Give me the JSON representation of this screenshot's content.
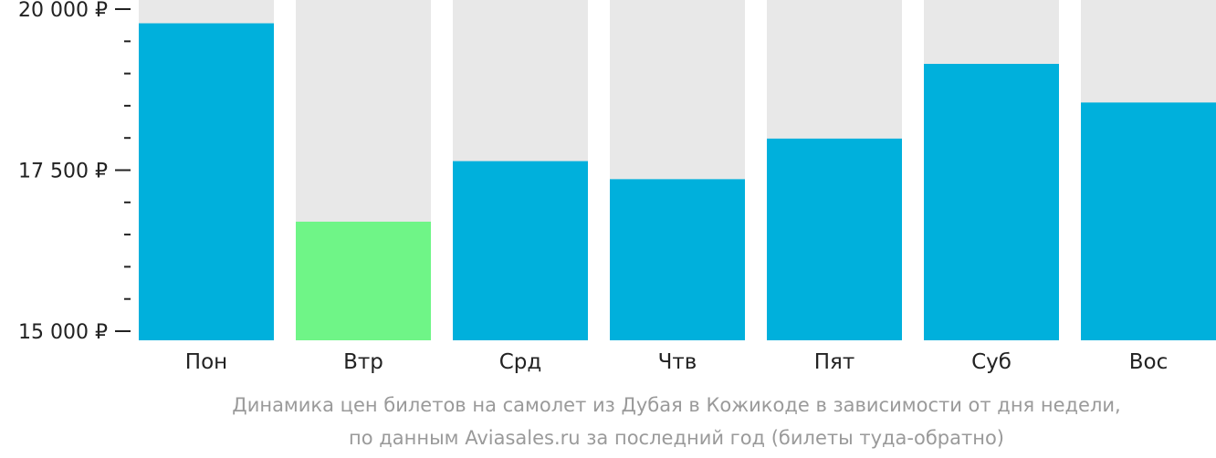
{
  "chart_data": {
    "type": "bar",
    "categories": [
      "Пон",
      "Втр",
      "Срд",
      "Чтв",
      "Пят",
      "Суб",
      "Вос"
    ],
    "values": [
      19780,
      16700,
      17640,
      17360,
      17990,
      19150,
      18550
    ],
    "highlight_index": 1,
    "ylim": [
      15000,
      20000
    ],
    "y_ticks": [
      {
        "value": 15000,
        "label": "15 000 ₽"
      },
      {
        "value": 17500,
        "label": "17 500 ₽"
      },
      {
        "value": 20000,
        "label": "20 000 ₽"
      }
    ],
    "minor_tick_step": 500,
    "colors": {
      "bar": "#00b0dc",
      "highlight": "#6ff587",
      "track": "#e8e8e8",
      "axis": "#222222",
      "caption": "#9a9a9a"
    },
    "caption": [
      "Динамика цен билетов на самолет из Дубая в Кожикоде в зависимости от дня недели,",
      "по данным Aviasales.ru за последний год (билеты туда-обратно)"
    ]
  }
}
